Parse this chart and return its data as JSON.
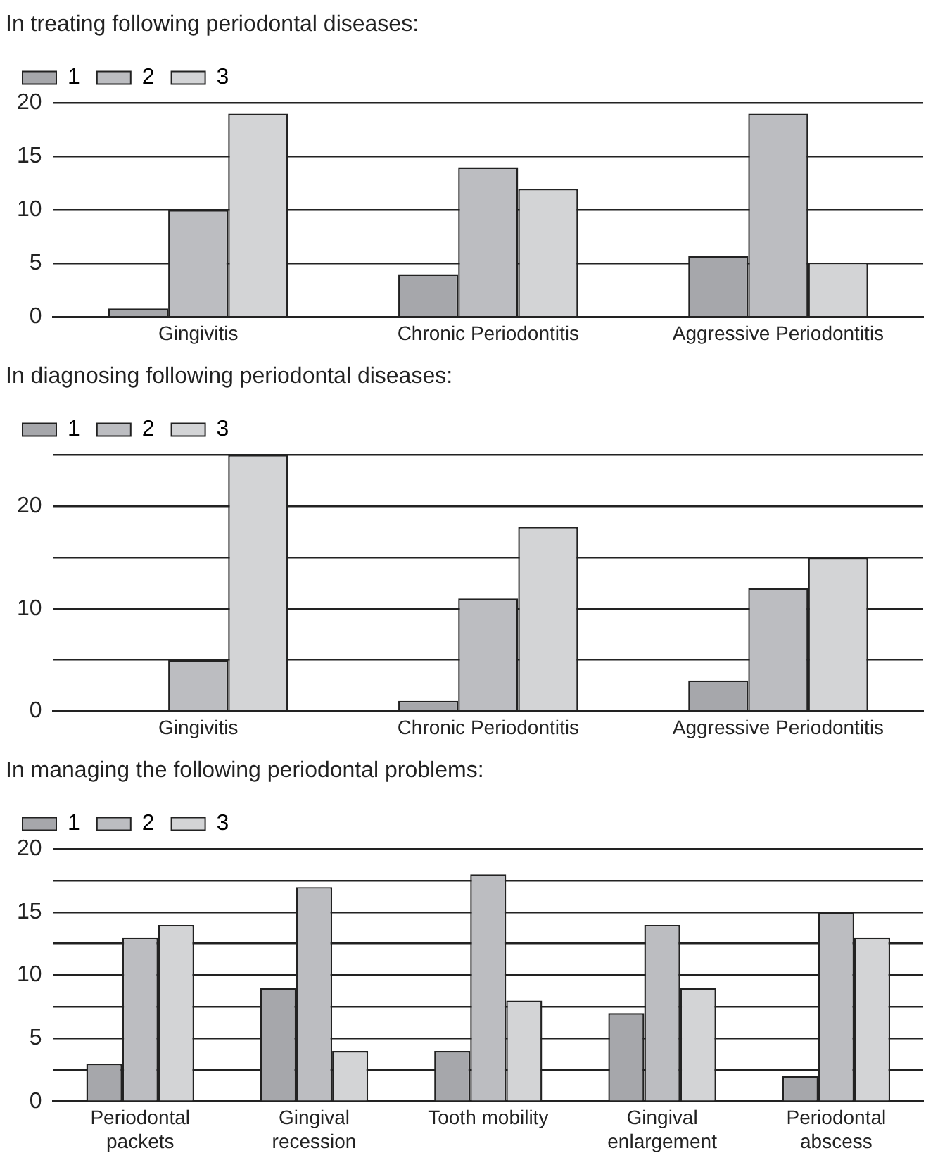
{
  "chart_data": [
    {
      "type": "bar",
      "title": "In treating following periodontal diseases:",
      "categories": [
        "Gingivitis",
        "Chronic Periodontitis",
        "Aggressive Periodontitis"
      ],
      "series": [
        {
          "name": "1",
          "color": "#a6a7ab",
          "values": [
            0.8,
            4,
            5.7
          ]
        },
        {
          "name": "2",
          "color": "#bcbdc1",
          "values": [
            10,
            14,
            19
          ]
        },
        {
          "name": "3",
          "color": "#d3d4d6",
          "values": [
            19,
            12,
            5.1
          ]
        }
      ],
      "ylim": [
        0,
        20
      ],
      "yticks": [
        0,
        5,
        10,
        15,
        20
      ],
      "grid": "y",
      "legend": "top left"
    },
    {
      "type": "bar",
      "title": "In diagnosing following periodontal diseases:",
      "categories": [
        "Gingivitis",
        "Chronic Periodontitis",
        "Aggressive Periodontitis"
      ],
      "series": [
        {
          "name": "1",
          "color": "#a6a7ab",
          "values": [
            0,
            1,
            3
          ]
        },
        {
          "name": "2",
          "color": "#bcbdc1",
          "values": [
            5,
            11,
            12
          ]
        },
        {
          "name": "3",
          "color": "#d3d4d6",
          "values": [
            25,
            18,
            15
          ]
        }
      ],
      "ylim": [
        0,
        25
      ],
      "yticks": [
        0,
        {
          "value": 5,
          "label": null
        },
        10,
        {
          "value": 15,
          "label": null
        },
        20,
        {
          "value": 25,
          "label": null
        }
      ],
      "grid": "y",
      "legend": "top left"
    },
    {
      "type": "bar",
      "title": "In managing the following periodontal problems:",
      "categories": [
        "Periodontal packets",
        "Gingival recession",
        "Tooth mobility",
        "Gingival enlargement",
        "Periodontal abscess"
      ],
      "series": [
        {
          "name": "1",
          "color": "#a6a7ab",
          "values": [
            3,
            9,
            4,
            7,
            2
          ]
        },
        {
          "name": "2",
          "color": "#bcbdc1",
          "values": [
            13,
            17,
            18,
            14,
            15
          ]
        },
        {
          "name": "3",
          "color": "#d3d4d6",
          "values": [
            14,
            4,
            8,
            9,
            13
          ]
        }
      ],
      "ylim": [
        0,
        20
      ],
      "yticks": [
        0,
        {
          "value": 2.5,
          "label": null
        },
        5,
        {
          "value": 7.5,
          "label": null
        },
        10,
        {
          "value": 12.5,
          "label": null
        },
        15,
        {
          "value": 17.5,
          "label": null
        },
        20
      ],
      "grid": "y",
      "legend": "top left"
    }
  ]
}
